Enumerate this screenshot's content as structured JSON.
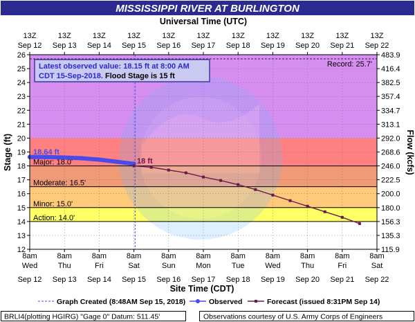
{
  "header": {
    "title": "MISSISSIPPI RIVER AT BURLINGTON",
    "top_axis_label": "Universal Time (UTC)",
    "bottom_axis_label": "Site Time (CDT)",
    "left_axis_label": "Stage (ft)",
    "right_axis_label": "Flow (kcfs)"
  },
  "colors": {
    "title_bg": "#2a2a90",
    "major": "#ff8080",
    "moderate": "#f09a78",
    "minor": "#ffc97a",
    "action": "#ffff66",
    "record_zone": "#d68ef0",
    "observed": "#4a4ae8",
    "forecast": "#6a1a4a",
    "info_box_bg": "#c9c9f2",
    "info_box_border": "#3a3aa8",
    "info_text_blue": "#2a2ad0"
  },
  "info_box": {
    "line1": "Latest observed value: 18.15 ft at 8:00 AM",
    "line2_blue": "CDT 15-Sep-2018.",
    "line2_black": " Flood Stage is 15 ft"
  },
  "thresholds": {
    "record": "Record: 25.7'",
    "major": "Major: 18.0'",
    "moderate": "Moderate: 16.5'",
    "minor": "Minor: 15.0'",
    "action": "Action: 14.0'"
  },
  "annotations": {
    "observed_peak": "18.64 ft",
    "forecast_start": "18 ft"
  },
  "legend": {
    "graph_created": "Graph Created (8:48AM Sep 15, 2018)",
    "observed": "Observed",
    "forecast": "Forecast (issued 8:31PM Sep 14)"
  },
  "footer": {
    "left": "BRLI4(plotting HGIRG) \"Gage 0\" Datum: 511.45'",
    "right": "Observations courtesy of U.S. Army Corps of Engineers"
  },
  "chart_data": {
    "type": "line",
    "title": "MISSISSIPPI RIVER AT BURLINGTON",
    "xlabel": "Site Time (CDT)",
    "ylabel": "Stage (ft)",
    "y2label": "Flow (kcfs)",
    "ylim": [
      12,
      26
    ],
    "xlim": [
      "2018-09-12T08:00",
      "2018-09-22T08:00"
    ],
    "y_ticks": [
      12,
      13,
      14,
      15,
      16,
      17,
      18,
      19,
      20,
      21,
      22,
      23,
      24,
      25,
      26
    ],
    "flow_ticks": [
      "115.9",
      "135.3",
      "156.3",
      "180.0",
      "200.0",
      "222.5",
      "246.0",
      "268.6",
      "292.0",
      "313.1",
      "334.7",
      "357.4",
      "382.5",
      "416.4",
      "483.9"
    ],
    "top_ticks": [
      {
        "hour": "13Z",
        "date": "Sep 12"
      },
      {
        "hour": "13Z",
        "date": "Sep 13"
      },
      {
        "hour": "13Z",
        "date": "Sep 14"
      },
      {
        "hour": "13Z",
        "date": "Sep 15"
      },
      {
        "hour": "13Z",
        "date": "Sep 16"
      },
      {
        "hour": "13Z",
        "date": "Sep 17"
      },
      {
        "hour": "13Z",
        "date": "Sep 18"
      },
      {
        "hour": "13Z",
        "date": "Sep 19"
      },
      {
        "hour": "13Z",
        "date": "Sep 20"
      },
      {
        "hour": "13Z",
        "date": "Sep 21"
      },
      {
        "hour": "13Z",
        "date": "Sep 22"
      }
    ],
    "bottom_ticks": [
      {
        "time": "8am",
        "day": "Wed",
        "date": "Sep 12"
      },
      {
        "time": "8am",
        "day": "Thu",
        "date": "Sep 13"
      },
      {
        "time": "8am",
        "day": "Fri",
        "date": "Sep 14"
      },
      {
        "time": "8am",
        "day": "Sat",
        "date": "Sep 15"
      },
      {
        "time": "8am",
        "day": "Sun",
        "date": "Sep 16"
      },
      {
        "time": "8am",
        "day": "Mon",
        "date": "Sep 17"
      },
      {
        "time": "8am",
        "day": "Tue",
        "date": "Sep 18"
      },
      {
        "time": "8am",
        "day": "Wed",
        "date": "Sep 19"
      },
      {
        "time": "8am",
        "day": "Thu",
        "date": "Sep 20"
      },
      {
        "time": "8am",
        "day": "Fri",
        "date": "Sep 21"
      },
      {
        "time": "8am",
        "day": "Sat",
        "date": "Sep 22"
      }
    ],
    "flood_categories": [
      {
        "name": "Action",
        "from": 14.0,
        "to": 15.0
      },
      {
        "name": "Minor",
        "from": 15.0,
        "to": 16.5
      },
      {
        "name": "Moderate",
        "from": 16.5,
        "to": 18.0
      },
      {
        "name": "Major",
        "from": 18.0,
        "to": 25.7
      },
      {
        "name": "Record",
        "value": 25.7
      }
    ],
    "graph_created": "2018-09-15T08:48",
    "series": [
      {
        "name": "Observed",
        "points": [
          {
            "x": "2018-09-12T08:00",
            "y": 18.64
          },
          {
            "x": "2018-09-12T20:00",
            "y": 18.64
          },
          {
            "x": "2018-09-13T08:00",
            "y": 18.6
          },
          {
            "x": "2018-09-13T20:00",
            "y": 18.55
          },
          {
            "x": "2018-09-14T08:00",
            "y": 18.45
          },
          {
            "x": "2018-09-14T20:00",
            "y": 18.3
          },
          {
            "x": "2018-09-15T08:00",
            "y": 18.15
          }
        ]
      },
      {
        "name": "Forecast (issued 8:31PM Sep 14)",
        "points": [
          {
            "x": "2018-09-15T08:00",
            "y": 18.0
          },
          {
            "x": "2018-09-15T20:00",
            "y": 17.9
          },
          {
            "x": "2018-09-16T08:00",
            "y": 17.7
          },
          {
            "x": "2018-09-16T20:00",
            "y": 17.5
          },
          {
            "x": "2018-09-17T08:00",
            "y": 17.2
          },
          {
            "x": "2018-09-17T20:00",
            "y": 16.95
          },
          {
            "x": "2018-09-18T08:00",
            "y": 16.65
          },
          {
            "x": "2018-09-18T20:00",
            "y": 16.3
          },
          {
            "x": "2018-09-19T08:00",
            "y": 15.9
          },
          {
            "x": "2018-09-19T20:00",
            "y": 15.5
          },
          {
            "x": "2018-09-20T08:00",
            "y": 15.1
          },
          {
            "x": "2018-09-20T20:00",
            "y": 14.7
          },
          {
            "x": "2018-09-21T08:00",
            "y": 14.3
          },
          {
            "x": "2018-09-21T20:00",
            "y": 13.85
          }
        ]
      }
    ]
  }
}
